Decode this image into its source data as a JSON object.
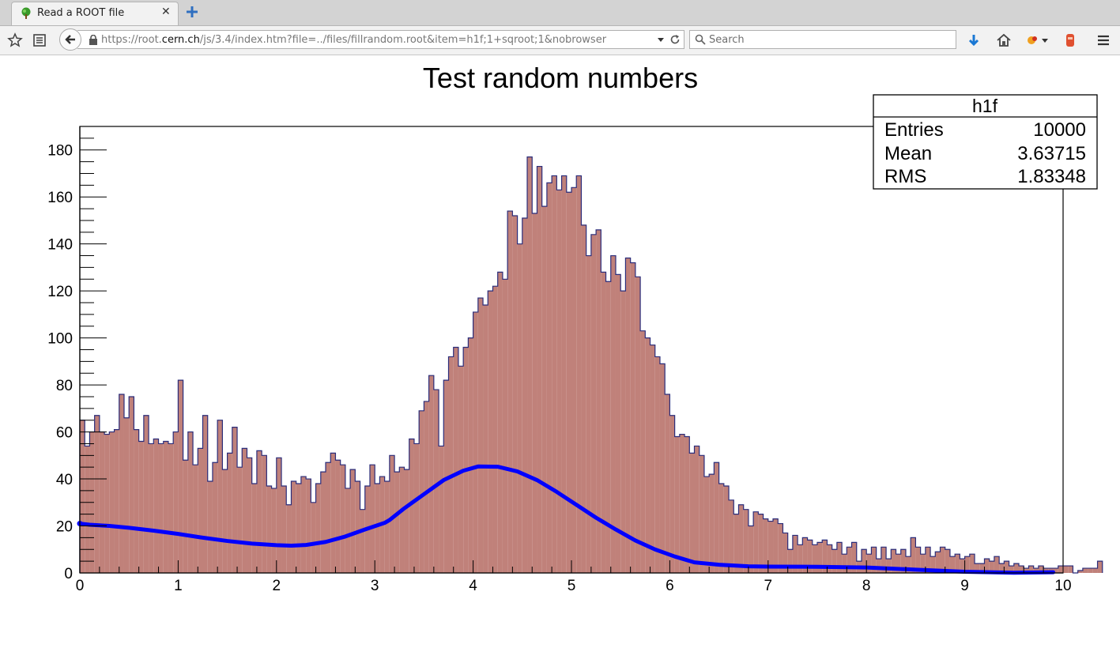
{
  "browser": {
    "tab_title": "Read a ROOT file",
    "tab_close": "✕",
    "url_prefix": "https://root.",
    "url_host": "cern.ch",
    "url_rest": "/js/3.4/index.htm?file=../files/fillrandom.root&item=h1f;1+sqroot;1&nobrowser",
    "search_placeholder": "Search",
    "icons": [
      "bookmark-star-icon",
      "reader-icon",
      "back-arrow-icon",
      "lock-icon",
      "dropdown-icon",
      "reload-icon",
      "search-icon",
      "download-icon",
      "home-icon",
      "extension-icon",
      "notification-icon",
      "menu-icon"
    ]
  },
  "chart_data": {
    "type": "bar",
    "title": "Test random numbers",
    "xlabel": "",
    "ylabel": "",
    "xlim": [
      0,
      10
    ],
    "ylim": [
      0,
      190
    ],
    "x_ticks": [
      "0",
      "1",
      "2",
      "3",
      "4",
      "5",
      "6",
      "7",
      "8",
      "9",
      "10"
    ],
    "y_ticks": [
      "0",
      "20",
      "40",
      "60",
      "80",
      "100",
      "120",
      "140",
      "160",
      "180"
    ],
    "bin_width": 0.05,
    "bar_fill": "#c0817a",
    "bar_line": "#2a2c7a",
    "values": [
      65,
      54,
      60,
      67,
      60,
      59,
      60,
      61,
      76,
      66,
      75,
      61,
      56,
      67,
      55,
      57,
      55,
      56,
      55,
      60,
      82,
      48,
      60,
      46,
      53,
      67,
      39,
      47,
      65,
      44,
      51,
      62,
      45,
      53,
      49,
      38,
      52,
      50,
      37,
      36,
      49,
      37,
      29,
      39,
      38,
      41,
      40,
      30,
      38,
      43,
      47,
      51,
      48,
      46,
      36,
      44,
      39,
      27,
      37,
      46,
      38,
      41,
      39,
      50,
      43,
      45,
      44,
      57,
      55,
      69,
      73,
      84,
      78,
      54,
      82,
      92,
      96,
      88,
      96,
      100,
      111,
      117,
      114,
      120,
      122,
      128,
      125,
      154,
      152,
      140,
      151,
      177,
      153,
      173,
      156,
      166,
      169,
      163,
      169,
      162,
      164,
      169,
      148,
      135,
      144,
      146,
      128,
      124,
      135,
      127,
      120,
      134,
      132,
      126,
      103,
      100,
      97,
      92,
      89,
      76,
      67,
      58,
      59,
      58,
      51,
      54,
      50,
      41,
      42,
      47,
      38,
      37,
      31,
      25,
      29,
      27,
      20,
      26,
      25,
      23,
      22,
      23,
      21,
      17,
      10,
      16,
      12,
      15,
      14,
      12,
      13,
      14,
      12,
      10,
      13,
      8,
      11,
      13,
      5,
      10,
      8,
      11,
      6,
      11,
      6,
      10,
      8,
      10,
      7,
      15,
      11,
      8,
      11,
      7,
      9,
      11,
      10,
      7,
      8,
      6,
      7,
      8,
      4,
      4,
      6,
      5,
      7,
      4,
      5,
      3,
      4,
      3,
      2,
      3,
      2,
      3,
      2,
      2,
      2,
      3,
      3,
      3,
      0,
      1,
      2,
      2,
      2,
      5
    ],
    "fit_line_color": "#0000ff",
    "fit_curve": {
      "x": [
        0.0,
        0.1,
        0.3,
        0.5,
        0.75,
        1.0,
        1.25,
        1.5,
        1.75,
        2.0,
        2.15,
        2.3,
        2.5,
        2.7,
        2.9,
        3.1,
        3.15,
        3.3,
        3.5,
        3.7,
        3.9,
        4.05,
        4.25,
        4.45,
        4.65,
        4.85,
        5.05,
        5.25,
        5.45,
        5.65,
        5.85,
        6.05,
        6.25,
        6.5,
        6.8,
        7.0,
        7.5,
        8.0,
        8.5,
        9.0,
        9.5,
        9.9
      ],
      "y": [
        21,
        20.5,
        20,
        19.2,
        18,
        16.6,
        15,
        13.6,
        12.5,
        11.8,
        11.6,
        11.9,
        13.2,
        15.5,
        18.5,
        21.3,
        22.5,
        27.5,
        33.5,
        39.5,
        43.5,
        45.3,
        45.2,
        43.2,
        39.5,
        34.5,
        29,
        23.5,
        18.5,
        13.8,
        10,
        7,
        4.5,
        3.5,
        2.8,
        2.7,
        2.6,
        2.3,
        1.4,
        0.5,
        0.1,
        0.3
      ]
    },
    "stats_box": {
      "name": "h1f",
      "rows": [
        {
          "label": "Entries",
          "value": "10000"
        },
        {
          "label": "Mean",
          "value": "3.63715"
        },
        {
          "label": "RMS",
          "value": "1.83348"
        }
      ]
    }
  }
}
